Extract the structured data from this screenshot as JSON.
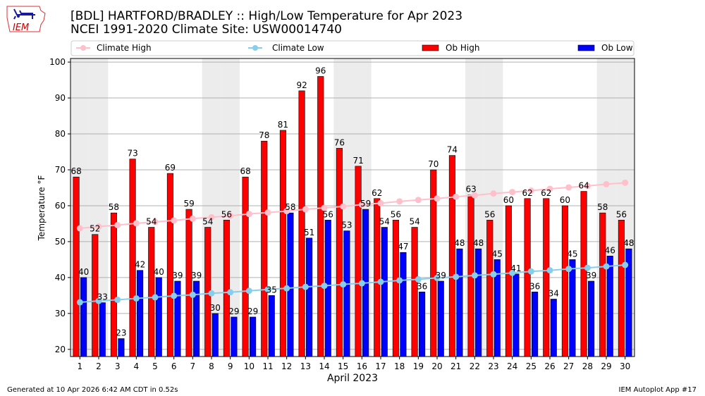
{
  "header": {
    "title_line1": "[BDL] HARTFORD/BRADLEY :: High/Low Temperature for Apr 2023",
    "title_line2": "NCEI 1991-2020 Climate Site: USW00014740",
    "logo_text": "IEM"
  },
  "footer": {
    "left": "Generated at 10 Apr 2026 6:42 AM CDT in 0.52s",
    "right": "IEM Autoplot App #17"
  },
  "chart_data": {
    "type": "bar",
    "title": "[BDL] HARTFORD/BRADLEY :: High/Low Temperature for Apr 2023",
    "subtitle": "NCEI 1991-2020 Climate Site: USW00014740",
    "xlabel": "April 2023",
    "ylabel": "Temperature °F",
    "ylim": [
      18,
      101
    ],
    "yticks": [
      20,
      30,
      40,
      50,
      60,
      70,
      80,
      90,
      100
    ],
    "grid": true,
    "legend_position": "top",
    "categories": [
      1,
      2,
      3,
      4,
      5,
      6,
      7,
      8,
      9,
      10,
      11,
      12,
      13,
      14,
      15,
      16,
      17,
      18,
      19,
      20,
      21,
      22,
      23,
      24,
      25,
      26,
      27,
      28,
      29,
      30
    ],
    "weekend_days": [
      1,
      2,
      8,
      9,
      15,
      16,
      22,
      23,
      29,
      30
    ],
    "series": [
      {
        "name": "Climate High",
        "kind": "line",
        "color": "#ffc0cb",
        "values": [
          53.7,
          54.2,
          54.6,
          55.1,
          55.5,
          55.9,
          56.4,
          56.8,
          57.2,
          57.7,
          58.1,
          58.5,
          59.0,
          59.4,
          59.8,
          60.3,
          60.7,
          61.2,
          61.6,
          62.0,
          62.5,
          62.9,
          63.4,
          63.8,
          64.2,
          64.7,
          65.1,
          65.5,
          66.0,
          66.4
        ]
      },
      {
        "name": "Climate Low",
        "kind": "line",
        "color": "#87ceeb",
        "values": [
          33.1,
          33.5,
          33.8,
          34.2,
          34.5,
          34.9,
          35.2,
          35.6,
          35.9,
          36.3,
          36.7,
          37.0,
          37.4,
          37.7,
          38.1,
          38.4,
          38.8,
          39.2,
          39.5,
          39.9,
          40.2,
          40.6,
          40.9,
          41.3,
          41.7,
          42.0,
          42.4,
          42.7,
          43.1,
          43.5
        ]
      },
      {
        "name": "Ob High",
        "kind": "bar",
        "color": "#ff0000",
        "values": [
          68,
          52,
          58,
          73,
          54,
          69,
          59,
          54,
          56,
          68,
          78,
          81,
          92,
          96,
          76,
          71,
          62,
          56,
          54,
          70,
          74,
          63,
          56,
          60,
          62,
          62,
          60,
          64,
          58,
          56
        ]
      },
      {
        "name": "Ob Low",
        "kind": "bar",
        "color": "#0000ff",
        "values": [
          40,
          33,
          23,
          42,
          40,
          39,
          39,
          30,
          29,
          29,
          35,
          58,
          51,
          56,
          53,
          59,
          54,
          47,
          36,
          39,
          48,
          48,
          45,
          41,
          36,
          34,
          45,
          39,
          46,
          48
        ]
      }
    ]
  }
}
